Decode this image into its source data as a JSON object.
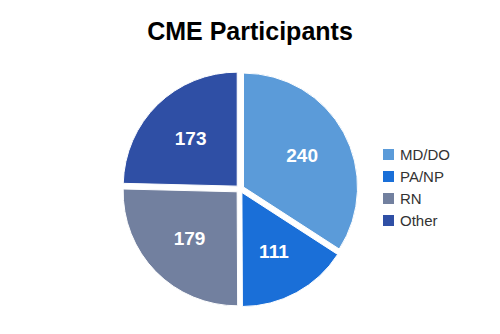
{
  "chart_data": {
    "type": "pie",
    "title": "CME Participants",
    "categories": [
      "MD/DO",
      "PA/NP",
      "RN",
      "Other"
    ],
    "values": [
      240,
      111,
      179,
      173
    ],
    "colors": [
      "#5b9bd9",
      "#1a6fd8",
      "#72809f",
      "#2f4fa5"
    ],
    "data_labels": true,
    "legend": "right"
  }
}
